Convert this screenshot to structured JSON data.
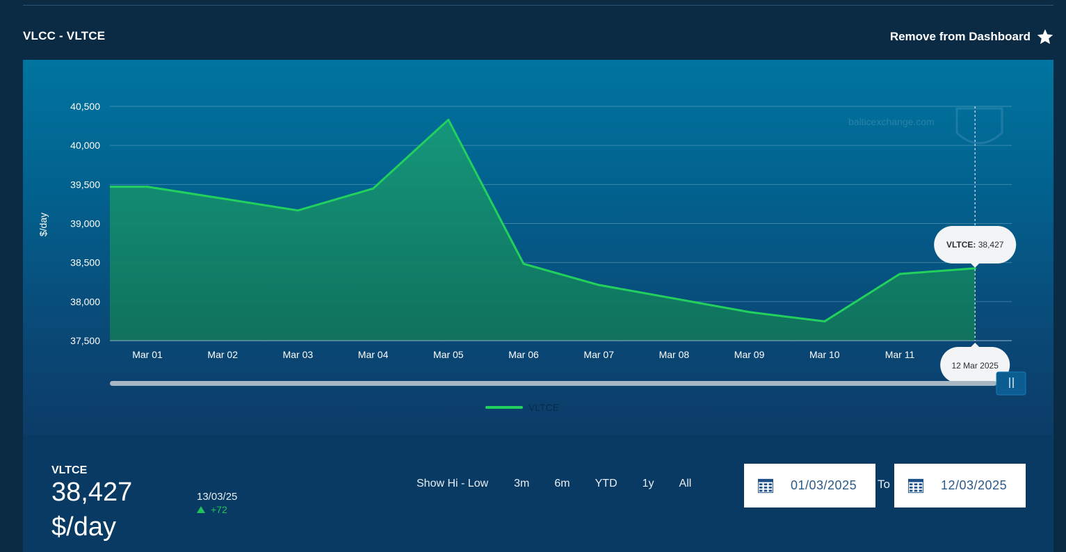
{
  "header": {
    "title": "VLCC - VLTCE",
    "remove_label": "Remove from Dashboard"
  },
  "chart_data": {
    "type": "area",
    "categories": [
      "Mar 01",
      "Mar 02",
      "Mar 03",
      "Mar 04",
      "Mar 05",
      "Mar 06",
      "Mar 07",
      "Mar 08",
      "Mar 09",
      "Mar 10",
      "Mar 11",
      "12 Mar 2025"
    ],
    "series": [
      {
        "name": "VLTCE",
        "values": [
          39471,
          39320,
          39167,
          39448,
          40328,
          38484,
          38213,
          38040,
          37866,
          37747,
          38355,
          38427
        ]
      }
    ],
    "xlabel": "",
    "ylabel": "$/day",
    "ylim": [
      37500,
      40500
    ],
    "yticks": [
      37500,
      38000,
      38500,
      39000,
      39500,
      40000,
      40500
    ],
    "xticks": [
      "Mar 01",
      "Mar 02",
      "Mar 03",
      "Mar 04",
      "Mar 05",
      "Mar 06",
      "Mar 07",
      "Mar 08",
      "Mar 09",
      "Mar 10",
      "Mar 11"
    ],
    "grid": true,
    "legend_position": "bottom-center",
    "watermark": "balticexchange.com",
    "tooltip": {
      "series_label": "VLTCE:",
      "value": "38,427",
      "date": "12 Mar 2025"
    },
    "colors": {
      "line": "#22d15d",
      "fill": "#0f8a64"
    }
  },
  "legend": {
    "label": "VLTCE"
  },
  "summary": {
    "name": "VLTCE",
    "value": "38,427",
    "unit": "$/day",
    "date": "13/03/25",
    "change": "+72"
  },
  "range_buttons": [
    "Show Hi - Low",
    "3m",
    "6m",
    "YTD",
    "1y",
    "All"
  ],
  "date_range": {
    "from": "01/03/2025",
    "to_label": "To",
    "to": "12/03/2025"
  },
  "colors": {
    "background": "#0b2a44",
    "accent_green": "#22d15d",
    "positive": "#22c25a"
  }
}
